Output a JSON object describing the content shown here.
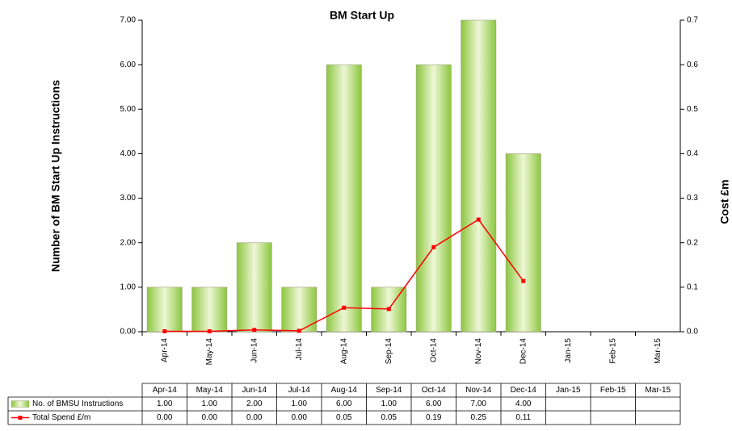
{
  "chart_data": {
    "type": "bar",
    "title": "BM Start Up",
    "y_label": "Number of BM Start Up Instructions",
    "y2_label": "Cost £m",
    "categories": [
      "Apr-14",
      "May-14",
      "Jun-14",
      "Jul-14",
      "Aug-14",
      "Sep-14",
      "Oct-14",
      "Nov-14",
      "Dec-14",
      "Jan-15",
      "Feb-15",
      "Mar-15"
    ],
    "series": [
      {
        "name": "No. of BMSU Instructions",
        "type": "bar",
        "color": "#99cc33",
        "values": [
          1,
          1,
          2,
          1,
          6,
          1,
          6,
          7,
          4,
          null,
          null,
          null
        ],
        "value_labels": [
          "1.00",
          "1.00",
          "2.00",
          "1.00",
          "6.00",
          "1.00",
          "6.00",
          "7.00",
          "4.00",
          null,
          null,
          null
        ]
      },
      {
        "name": "Total Spend £/m",
        "type": "line",
        "axis": "y2",
        "color": "#ff0000",
        "values": [
          0.001,
          0.001,
          0.004,
          0.002,
          0.054,
          0.051,
          0.19,
          0.252,
          0.114,
          null,
          null,
          null
        ],
        "value_labels": [
          "0.00",
          "0.00",
          "0.00",
          "0.00",
          "0.05",
          "0.05",
          "0.19",
          "0.25",
          "0.11",
          null,
          null,
          null
        ]
      }
    ],
    "ylim": [
      0,
      7
    ],
    "yticks": [
      {
        "value": 0,
        "label": "0.00"
      },
      {
        "value": 1,
        "label": "1.00"
      },
      {
        "value": 2,
        "label": "2.00"
      },
      {
        "value": 3,
        "label": "3.00"
      },
      {
        "value": 4,
        "label": "4.00"
      },
      {
        "value": 5,
        "label": "5.00"
      },
      {
        "value": 6,
        "label": "6.00"
      },
      {
        "value": 7,
        "label": "7.00"
      }
    ],
    "y2lim": [
      0,
      0.7
    ],
    "y2ticks": [
      {
        "value": 0,
        "label": "0.0"
      },
      0.1,
      0.2,
      0.3,
      0.4,
      0.5,
      0.6,
      0.7
    ],
    "grid": false
  }
}
